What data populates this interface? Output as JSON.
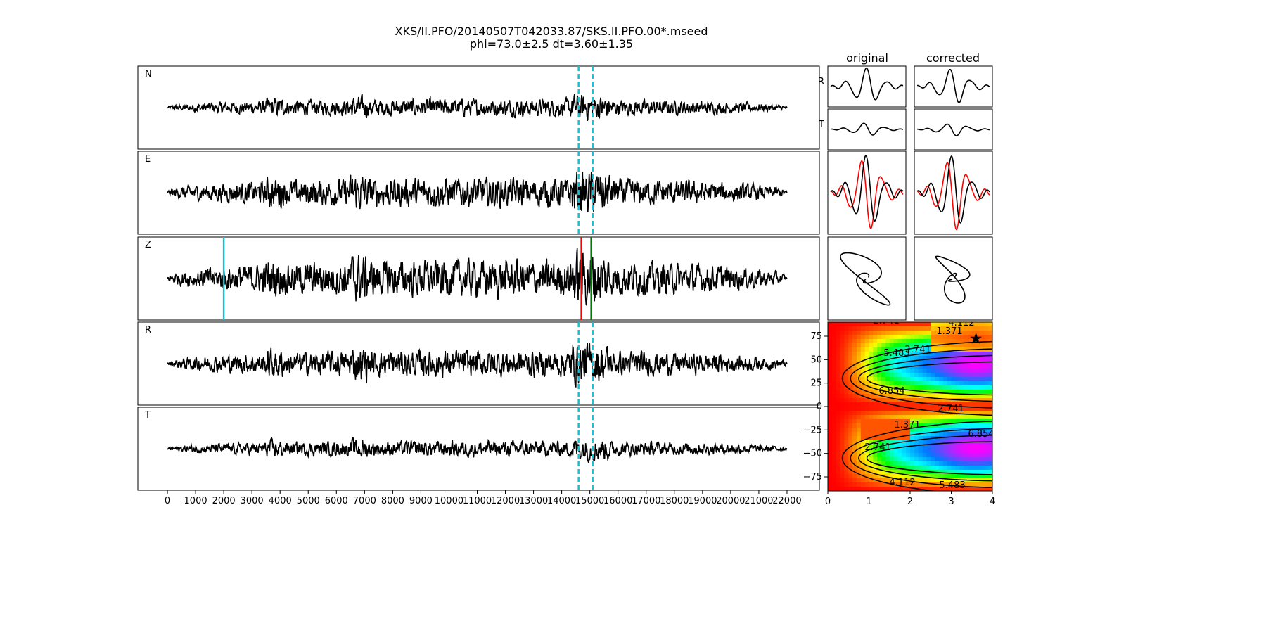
{
  "title_line1": "XKS/II.PFO/20140507T042033.87/SKS.II.PFO.00*.mseed",
  "title_line2": "phi=73.0±2.5 dt=3.60±1.35",
  "chart_data": {
    "type": "line",
    "traces": [
      {
        "label": "N",
        "amp": 0.35
      },
      {
        "label": "E",
        "amp": 0.6
      },
      {
        "label": "Z",
        "amp": 0.75
      },
      {
        "label": "R",
        "amp": 0.55
      },
      {
        "label": "T",
        "amp": 0.32
      }
    ],
    "x_range": [
      -1050,
      23150
    ],
    "x_ticks": [
      0,
      1000,
      2000,
      3000,
      4000,
      5000,
      6000,
      7000,
      8000,
      9000,
      10000,
      11000,
      12000,
      13000,
      14000,
      15000,
      16000,
      17000,
      18000,
      19000,
      20000,
      21000,
      22000
    ],
    "trace_range": [
      0,
      22000
    ],
    "window_lines": [
      14600,
      15100
    ],
    "window_color": "#17becf",
    "phase_markers": [
      {
        "x": 2000,
        "color": "#17becf"
      },
      {
        "x": 14700,
        "color": "#ff0000"
      },
      {
        "x": 15050,
        "color": "#008000"
      }
    ],
    "small_panels": {
      "col_titles": [
        "original",
        "corrected"
      ],
      "row_labels": [
        "R",
        "T"
      ]
    },
    "grid_search": {
      "x_range": [
        0,
        4
      ],
      "y_range": [
        -90,
        90
      ],
      "x_ticks": [
        0,
        1,
        2,
        3,
        4
      ],
      "y_ticks": [
        75,
        50,
        25,
        0,
        -25,
        -50,
        -75
      ],
      "best": {
        "dt": 3.6,
        "phi": 73.0
      },
      "contour_labels": [
        "1.371",
        "2.741",
        "4.112",
        "5.483",
        "6.854"
      ]
    }
  }
}
